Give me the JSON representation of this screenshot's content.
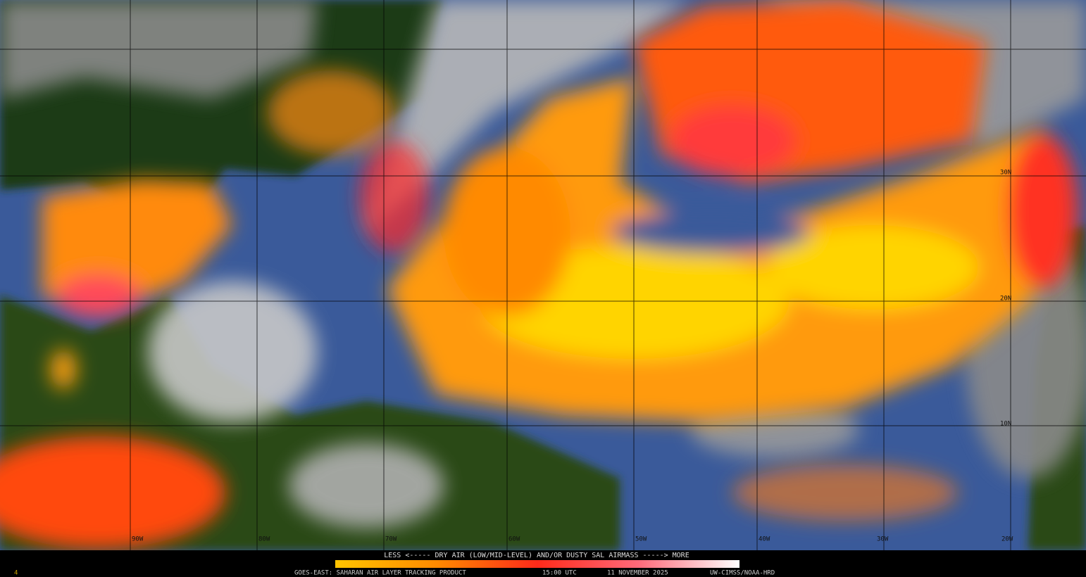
{
  "map": {
    "lon_labels": [
      "90W",
      "80W",
      "70W",
      "60W",
      "50W",
      "40W",
      "30W",
      "20W"
    ],
    "lat_labels": [
      "30N",
      "20N",
      "10N"
    ]
  },
  "legend": {
    "caption": "LESS <----- DRY AIR (LOW/MID-LEVEL) AND/OR DUSTY SAL AIRMASS -----> MORE"
  },
  "footer": {
    "frame": "4",
    "product": "GOES-EAST: SAHARAN AIR LAYER TRACKING PRODUCT",
    "time": "15:00 UTC",
    "date": "11 NOVEMBER 2025",
    "credit": "UW-CIMSS/NOAA-HRD"
  }
}
